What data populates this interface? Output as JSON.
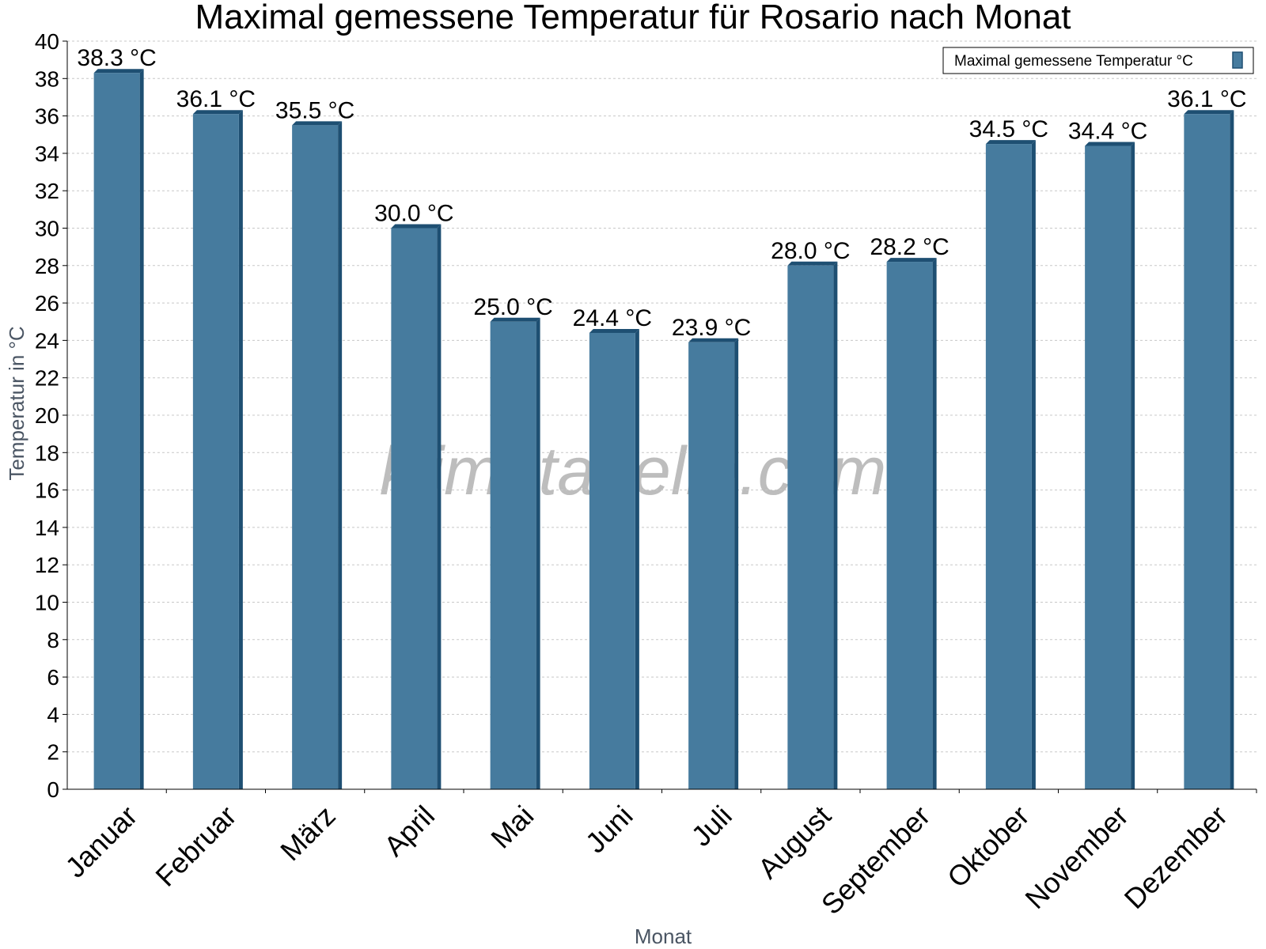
{
  "chart_data": {
    "type": "bar",
    "title": "Maximal gemessene Temperatur für Rosario nach Monat",
    "xlabel": "Monat",
    "ylabel": "Temperatur in °C",
    "ylim": [
      0,
      40
    ],
    "ytick_step": 2,
    "grid": true,
    "legend": {
      "position": "top-right",
      "entries": [
        "Maximal gemessene Temperatur °C"
      ]
    },
    "categories": [
      "Januar",
      "Februar",
      "März",
      "April",
      "Mai",
      "Juni",
      "Juli",
      "August",
      "September",
      "Oktober",
      "November",
      "Dezember"
    ],
    "series": [
      {
        "name": "Maximal gemessene Temperatur °C",
        "values": [
          38.3,
          36.1,
          35.5,
          30.0,
          25.0,
          24.4,
          23.9,
          28.0,
          28.2,
          34.5,
          34.4,
          36.1
        ],
        "labels": [
          "38.3 °C",
          "36.1 °C",
          "35.5 °C",
          "30.0 °C",
          "25.0 °C",
          "24.4 °C",
          "23.9 °C",
          "28.0 °C",
          "28.2 °C",
          "34.5 °C",
          "34.4 °C",
          "36.1 °C"
        ],
        "color": "#467b9e",
        "edge_color": "#1e4f72"
      }
    ],
    "watermark": "klimatabelle.com"
  }
}
